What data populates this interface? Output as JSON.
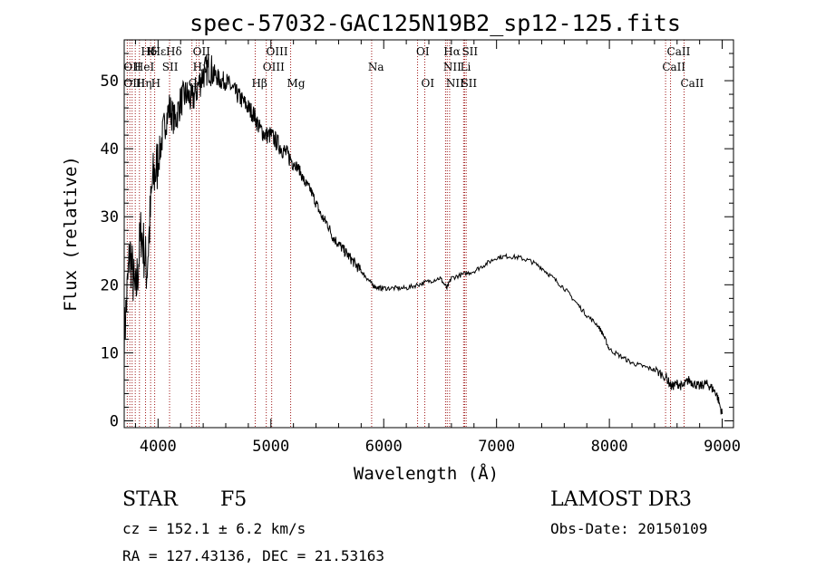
{
  "chart_data": {
    "type": "line",
    "title": "spec-57032-GAC125N19B2_sp12-125.fits",
    "xlabel": "Wavelength (Å)",
    "ylabel": "Flux (relative)",
    "xlim": [
      3700,
      9100
    ],
    "ylim": [
      -1,
      56
    ],
    "x_ticks": [
      4000,
      5000,
      6000,
      7000,
      8000,
      9000
    ],
    "y_ticks": [
      0,
      10,
      20,
      30,
      40,
      50
    ],
    "series": [
      {
        "name": "flux",
        "x": [
          3700,
          3750,
          3800,
          3850,
          3900,
          3950,
          4000,
          4050,
          4100,
          4150,
          4200,
          4250,
          4300,
          4350,
          4400,
          4450,
          4500,
          4550,
          4600,
          4650,
          4700,
          4750,
          4800,
          4850,
          4900,
          4950,
          5000,
          5050,
          5100,
          5150,
          5200,
          5250,
          5300,
          5350,
          5400,
          5450,
          5500,
          5550,
          5600,
          5650,
          5700,
          5750,
          5800,
          5850,
          5900,
          5950,
          6000,
          6100,
          6200,
          6300,
          6400,
          6500,
          6560,
          6600,
          6700,
          6800,
          6900,
          7000,
          7100,
          7200,
          7300,
          7400,
          7500,
          7600,
          7700,
          7800,
          7900,
          7950,
          8000,
          8100,
          8200,
          8300,
          8400,
          8500,
          8550,
          8600,
          8650,
          8700,
          8750,
          8800,
          8850,
          8900,
          8950,
          9000
        ],
        "y": [
          12,
          25,
          18,
          28,
          22,
          35,
          38,
          43,
          46,
          44,
          47,
          48,
          47,
          49,
          51,
          52,
          51,
          50,
          50,
          49,
          48,
          47,
          46,
          45,
          43,
          42,
          42,
          41,
          40,
          39,
          38,
          37,
          35,
          34,
          32,
          30,
          29,
          27,
          26,
          25,
          24,
          23,
          22,
          21,
          20,
          19.5,
          19.5,
          19.5,
          19.5,
          20,
          20.5,
          21,
          19.5,
          21,
          21.5,
          22,
          23,
          24,
          24.2,
          24,
          23.5,
          22.5,
          21,
          19.5,
          17.5,
          15.5,
          14,
          12.5,
          10.5,
          9.5,
          8.5,
          8,
          7.5,
          6.5,
          5,
          5.5,
          5,
          6,
          5.5,
          5,
          5.5,
          5,
          4,
          1
        ]
      }
    ],
    "line_labels": [
      {
        "text": "Hδ",
        "x": 3880,
        "row": 1
      },
      {
        "text": "K",
        "x": 3934,
        "row": 1
      },
      {
        "text": "Hε",
        "x": 3970,
        "row": 1
      },
      {
        "text": "Hδ",
        "x": 4102,
        "row": 1
      },
      {
        "text": "OII",
        "x": 4340,
        "row": 1
      },
      {
        "text": "OIII",
        "x": 4990,
        "row": 1
      },
      {
        "text": "OI",
        "x": 6320,
        "row": 1
      },
      {
        "text": "Hα",
        "x": 6563,
        "row": 1
      },
      {
        "text": "SII",
        "x": 6725,
        "row": 1
      },
      {
        "text": "CaII",
        "x": 8542,
        "row": 1
      },
      {
        "text": "OII",
        "x": 3727,
        "row": 2
      },
      {
        "text": "HeI",
        "x": 3820,
        "row": 2
      },
      {
        "text": "SII",
        "x": 4068,
        "row": 2
      },
      {
        "text": "Hγ",
        "x": 4340,
        "row": 2
      },
      {
        "text": "OIII",
        "x": 4960,
        "row": 2
      },
      {
        "text": "Na",
        "x": 5893,
        "row": 2
      },
      {
        "text": "NII",
        "x": 6560,
        "row": 2
      },
      {
        "text": "Li",
        "x": 6710,
        "row": 2
      },
      {
        "text": "CaII",
        "x": 8500,
        "row": 2
      },
      {
        "text": "OIII",
        "x": 3727,
        "row": 3
      },
      {
        "text": "Hη",
        "x": 3835,
        "row": 3
      },
      {
        "text": "H",
        "x": 3970,
        "row": 3
      },
      {
        "text": "G",
        "x": 4300,
        "row": 3
      },
      {
        "text": "Hβ",
        "x": 4861,
        "row": 3
      },
      {
        "text": "Mg",
        "x": 5175,
        "row": 3
      },
      {
        "text": "OI",
        "x": 6364,
        "row": 3
      },
      {
        "text": "NII",
        "x": 6584,
        "row": 3
      },
      {
        "text": "SII",
        "x": 6717,
        "row": 3
      },
      {
        "text": "CaII",
        "x": 8662,
        "row": 3
      }
    ],
    "line_wavelengths": [
      3727,
      3750,
      3770,
      3798,
      3835,
      3889,
      3934,
      3970,
      4102,
      4300,
      4340,
      4364,
      4861,
      4959,
      5007,
      5175,
      5893,
      6300,
      6364,
      6548,
      6563,
      6584,
      6708,
      6717,
      6731,
      8498,
      8542,
      8662
    ]
  },
  "info": {
    "object_class": "STAR",
    "subclass": "F5",
    "cz": "cz = 152.1 ± 6.2 km/s",
    "radec": "RA = 127.43136, DEC =  21.53163",
    "survey": "LAMOST DR3",
    "obs_date": "Obs-Date: 20150109"
  },
  "colors": {
    "axis": "#000000",
    "line_marker": "#a01818"
  }
}
